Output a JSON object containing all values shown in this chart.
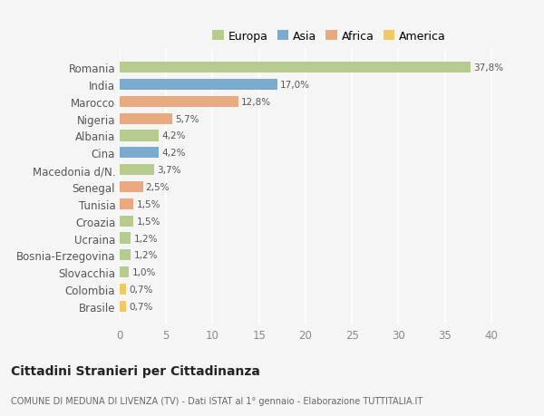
{
  "countries": [
    "Romania",
    "India",
    "Marocco",
    "Nigeria",
    "Albania",
    "Cina",
    "Macedonia d/N.",
    "Senegal",
    "Tunisia",
    "Croazia",
    "Ucraina",
    "Bosnia-Erzegovina",
    "Slovacchia",
    "Colombia",
    "Brasile"
  ],
  "values": [
    37.8,
    17.0,
    12.8,
    5.7,
    4.2,
    4.2,
    3.7,
    2.5,
    1.5,
    1.5,
    1.2,
    1.2,
    1.0,
    0.7,
    0.7
  ],
  "labels": [
    "37,8%",
    "17,0%",
    "12,8%",
    "5,7%",
    "4,2%",
    "4,2%",
    "3,7%",
    "2,5%",
    "1,5%",
    "1,5%",
    "1,2%",
    "1,2%",
    "1,0%",
    "0,7%",
    "0,7%"
  ],
  "continents": [
    "Europa",
    "Asia",
    "Africa",
    "Africa",
    "Europa",
    "Asia",
    "Europa",
    "Africa",
    "Africa",
    "Europa",
    "Europa",
    "Europa",
    "Europa",
    "America",
    "America"
  ],
  "colors": {
    "Europa": "#b5cc8e",
    "Asia": "#7aabcf",
    "Africa": "#e8aa7e",
    "America": "#f0ca60"
  },
  "legend_order": [
    "Europa",
    "Asia",
    "Africa",
    "America"
  ],
  "title": "Cittadini Stranieri per Cittadinanza",
  "subtitle": "COMUNE DI MEDUNA DI LIVENZA (TV) - Dati ISTAT al 1° gennaio - Elaborazione TUTTITALIA.IT",
  "xlim": [
    0,
    41
  ],
  "xticks": [
    0,
    5,
    10,
    15,
    20,
    25,
    30,
    35,
    40
  ],
  "bg_color": "#f5f5f5",
  "grid_color": "#ffffff"
}
